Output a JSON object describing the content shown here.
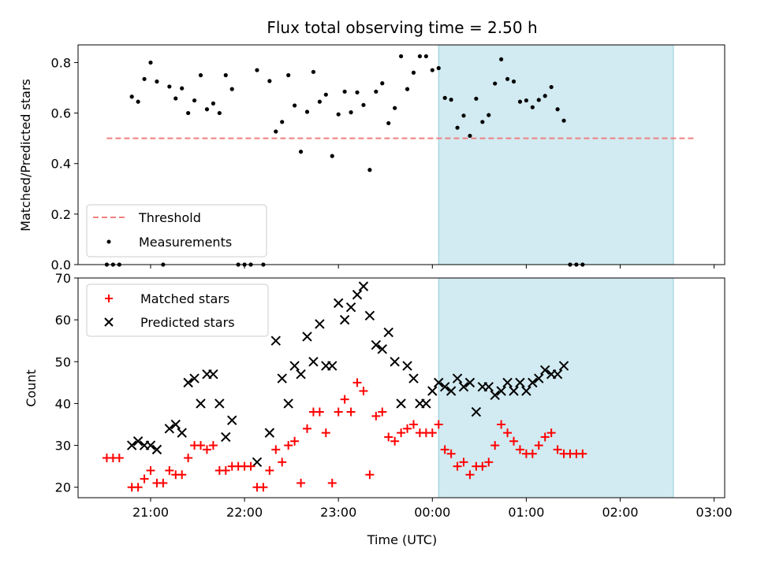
{
  "chart_data": {
    "type": "scatter",
    "title": "Flux total observing time = 2.50 h",
    "xlabel": "Time (UTC)",
    "x_ticks": [
      "21:00",
      "22:00",
      "23:00",
      "00:00",
      "01:00",
      "02:00",
      "03:00"
    ],
    "shaded_interval": {
      "start": "00:04",
      "end": "02:34",
      "color": "#add8e6"
    },
    "panels": [
      {
        "ylabel": "Matched/Predicted stars",
        "ylim": [
          0,
          0.87
        ],
        "y_ticks": [
          "0.0",
          "0.2",
          "0.4",
          "0.6",
          "0.8"
        ],
        "legend": {
          "placement": "lower-left",
          "entries": [
            "Threshold",
            "Measurements"
          ]
        },
        "threshold": {
          "name": "Threshold",
          "y": 0.5,
          "x_start": "20:32",
          "x_end": "02:48",
          "color": "#f08080"
        },
        "series": [
          {
            "name": "Measurements",
            "marker": "dot",
            "color": "#000000",
            "points": [
              [
                "20:32",
                0
              ],
              [
                "20:36",
                0
              ],
              [
                "20:40",
                0
              ],
              [
                "20:48",
                0.665
              ],
              [
                "20:52",
                0.645
              ],
              [
                "20:56",
                0.735
              ],
              [
                "21:00",
                0.8
              ],
              [
                "21:04",
                0.725
              ],
              [
                "21:08",
                0
              ],
              [
                "21:12",
                0.705
              ],
              [
                "21:16",
                0.658
              ],
              [
                "21:20",
                0.698
              ],
              [
                "21:24",
                0.6
              ],
              [
                "21:28",
                0.65
              ],
              [
                "21:32",
                0.75
              ],
              [
                "21:36",
                0.615
              ],
              [
                "21:40",
                0.638
              ],
              [
                "21:44",
                0.6
              ],
              [
                "21:48",
                0.75
              ],
              [
                "21:52",
                0.695
              ],
              [
                "21:56",
                0
              ],
              [
                "22:00",
                0
              ],
              [
                "22:04",
                0
              ],
              [
                "22:08",
                0.77
              ],
              [
                "22:12",
                0
              ],
              [
                "22:16",
                0.727
              ],
              [
                "22:20",
                0.527
              ],
              [
                "22:24",
                0.565
              ],
              [
                "22:28",
                0.75
              ],
              [
                "22:32",
                0.63
              ],
              [
                "22:36",
                0.447
              ],
              [
                "22:40",
                0.605
              ],
              [
                "22:44",
                0.763
              ],
              [
                "22:48",
                0.645
              ],
              [
                "22:52",
                0.673
              ],
              [
                "22:56",
                0.43
              ],
              [
                "23:00",
                0.595
              ],
              [
                "23:04",
                0.685
              ],
              [
                "23:08",
                0.603
              ],
              [
                "23:12",
                0.682
              ],
              [
                "23:16",
                0.632
              ],
              [
                "23:20",
                0.375
              ],
              [
                "23:24",
                0.685
              ],
              [
                "23:28",
                0.718
              ],
              [
                "23:32",
                0.56
              ],
              [
                "23:36",
                0.62
              ],
              [
                "23:40",
                0.825
              ],
              [
                "23:44",
                0.695
              ],
              [
                "23:48",
                0.76
              ],
              [
                "23:52",
                0.825
              ],
              [
                "23:56",
                0.825
              ],
              [
                "00:00",
                0.77
              ],
              [
                "00:04",
                0.778
              ],
              [
                "00:08",
                0.66
              ],
              [
                "00:12",
                0.653
              ],
              [
                "00:16",
                0.542
              ],
              [
                "00:20",
                0.59
              ],
              [
                "00:24",
                0.51
              ],
              [
                "00:28",
                0.657
              ],
              [
                "00:32",
                0.565
              ],
              [
                "00:36",
                0.592
              ],
              [
                "00:40",
                0.717
              ],
              [
                "00:44",
                0.813
              ],
              [
                "00:48",
                0.735
              ],
              [
                "00:52",
                0.725
              ],
              [
                "00:56",
                0.645
              ],
              [
                "01:00",
                0.65
              ],
              [
                "01:04",
                0.623
              ],
              [
                "01:08",
                0.652
              ],
              [
                "01:12",
                0.668
              ],
              [
                "01:16",
                0.703
              ],
              [
                "01:20",
                0.615
              ],
              [
                "01:24",
                0.57
              ],
              [
                "01:28",
                0
              ],
              [
                "01:32",
                0
              ],
              [
                "01:36",
                0
              ]
            ]
          }
        ]
      },
      {
        "ylabel": "Count",
        "ylim": [
          17.5,
          70
        ],
        "y_ticks": [
          "20",
          "30",
          "40",
          "50",
          "60",
          "70"
        ],
        "legend": {
          "placement": "upper-left",
          "entries": [
            "Matched stars",
            "Predicted stars"
          ]
        },
        "series": [
          {
            "name": "Matched stars",
            "marker": "plus",
            "color": "#ff0000",
            "points": [
              [
                "20:32",
                27
              ],
              [
                "20:36",
                27
              ],
              [
                "20:40",
                27
              ],
              [
                "20:48",
                20
              ],
              [
                "20:52",
                20
              ],
              [
                "20:56",
                22
              ],
              [
                "21:00",
                24
              ],
              [
                "21:04",
                21
              ],
              [
                "21:08",
                21
              ],
              [
                "21:12",
                24
              ],
              [
                "21:16",
                23
              ],
              [
                "21:20",
                23
              ],
              [
                "21:24",
                27
              ],
              [
                "21:28",
                30
              ],
              [
                "21:32",
                30
              ],
              [
                "21:36",
                29
              ],
              [
                "21:40",
                30
              ],
              [
                "21:44",
                24
              ],
              [
                "21:48",
                24
              ],
              [
                "21:52",
                25
              ],
              [
                "21:56",
                25
              ],
              [
                "22:00",
                25
              ],
              [
                "22:04",
                25
              ],
              [
                "22:08",
                20
              ],
              [
                "22:12",
                20
              ],
              [
                "22:16",
                24
              ],
              [
                "22:20",
                29
              ],
              [
                "22:24",
                26
              ],
              [
                "22:28",
                30
              ],
              [
                "22:32",
                31
              ],
              [
                "22:36",
                21
              ],
              [
                "22:40",
                34
              ],
              [
                "22:44",
                38
              ],
              [
                "22:48",
                38
              ],
              [
                "22:52",
                33
              ],
              [
                "22:56",
                21
              ],
              [
                "23:00",
                38
              ],
              [
                "23:04",
                41
              ],
              [
                "23:08",
                38
              ],
              [
                "23:12",
                45
              ],
              [
                "23:16",
                43
              ],
              [
                "23:20",
                23
              ],
              [
                "23:24",
                37
              ],
              [
                "23:28",
                38
              ],
              [
                "23:32",
                32
              ],
              [
                "23:36",
                31
              ],
              [
                "23:40",
                33
              ],
              [
                "23:44",
                34
              ],
              [
                "23:48",
                35
              ],
              [
                "23:52",
                33
              ],
              [
                "23:56",
                33
              ],
              [
                "00:00",
                33
              ],
              [
                "00:04",
                35
              ],
              [
                "00:08",
                29
              ],
              [
                "00:12",
                28
              ],
              [
                "00:16",
                25
              ],
              [
                "00:20",
                26
              ],
              [
                "00:24",
                23
              ],
              [
                "00:28",
                25
              ],
              [
                "00:32",
                25
              ],
              [
                "00:36",
                26
              ],
              [
                "00:40",
                30
              ],
              [
                "00:44",
                35
              ],
              [
                "00:48",
                33
              ],
              [
                "00:52",
                31
              ],
              [
                "00:56",
                29
              ],
              [
                "01:00",
                28
              ],
              [
                "01:04",
                28
              ],
              [
                "01:08",
                30
              ],
              [
                "01:12",
                32
              ],
              [
                "01:16",
                33
              ],
              [
                "01:20",
                29
              ],
              [
                "01:24",
                28
              ],
              [
                "01:28",
                28
              ],
              [
                "01:32",
                28
              ],
              [
                "01:36",
                28
              ]
            ]
          },
          {
            "name": "Predicted stars",
            "marker": "x",
            "color": "#000000",
            "points": [
              [
                "20:48",
                30
              ],
              [
                "20:52",
                31
              ],
              [
                "20:56",
                30
              ],
              [
                "21:00",
                30
              ],
              [
                "21:04",
                29
              ],
              [
                "21:12",
                34
              ],
              [
                "21:16",
                35
              ],
              [
                "21:20",
                33
              ],
              [
                "21:24",
                45
              ],
              [
                "21:28",
                46
              ],
              [
                "21:32",
                40
              ],
              [
                "21:36",
                47
              ],
              [
                "21:40",
                47
              ],
              [
                "21:44",
                40
              ],
              [
                "21:48",
                32
              ],
              [
                "21:52",
                36
              ],
              [
                "22:08",
                26
              ],
              [
                "22:16",
                33
              ],
              [
                "22:20",
                55
              ],
              [
                "22:24",
                46
              ],
              [
                "22:28",
                40
              ],
              [
                "22:32",
                49
              ],
              [
                "22:36",
                47
              ],
              [
                "22:40",
                56
              ],
              [
                "22:44",
                50
              ],
              [
                "22:48",
                59
              ],
              [
                "22:52",
                49
              ],
              [
                "22:56",
                49
              ],
              [
                "23:00",
                64
              ],
              [
                "23:04",
                60
              ],
              [
                "23:08",
                63
              ],
              [
                "23:12",
                66
              ],
              [
                "23:16",
                68
              ],
              [
                "23:20",
                61
              ],
              [
                "23:24",
                54
              ],
              [
                "23:28",
                53
              ],
              [
                "23:32",
                57
              ],
              [
                "23:36",
                50
              ],
              [
                "23:40",
                40
              ],
              [
                "23:44",
                49
              ],
              [
                "23:48",
                46
              ],
              [
                "23:52",
                40
              ],
              [
                "23:56",
                40
              ],
              [
                "00:00",
                43
              ],
              [
                "00:04",
                45
              ],
              [
                "00:08",
                44
              ],
              [
                "00:12",
                43
              ],
              [
                "00:16",
                46
              ],
              [
                "00:20",
                44
              ],
              [
                "00:24",
                45
              ],
              [
                "00:28",
                38
              ],
              [
                "00:32",
                44
              ],
              [
                "00:36",
                44
              ],
              [
                "00:40",
                42
              ],
              [
                "00:44",
                43
              ],
              [
                "00:48",
                45
              ],
              [
                "00:52",
                43
              ],
              [
                "00:56",
                45
              ],
              [
                "01:00",
                43
              ],
              [
                "01:04",
                45
              ],
              [
                "01:08",
                46
              ],
              [
                "01:12",
                48
              ],
              [
                "01:16",
                47
              ],
              [
                "01:20",
                47
              ],
              [
                "01:24",
                49
              ]
            ]
          }
        ]
      }
    ]
  }
}
